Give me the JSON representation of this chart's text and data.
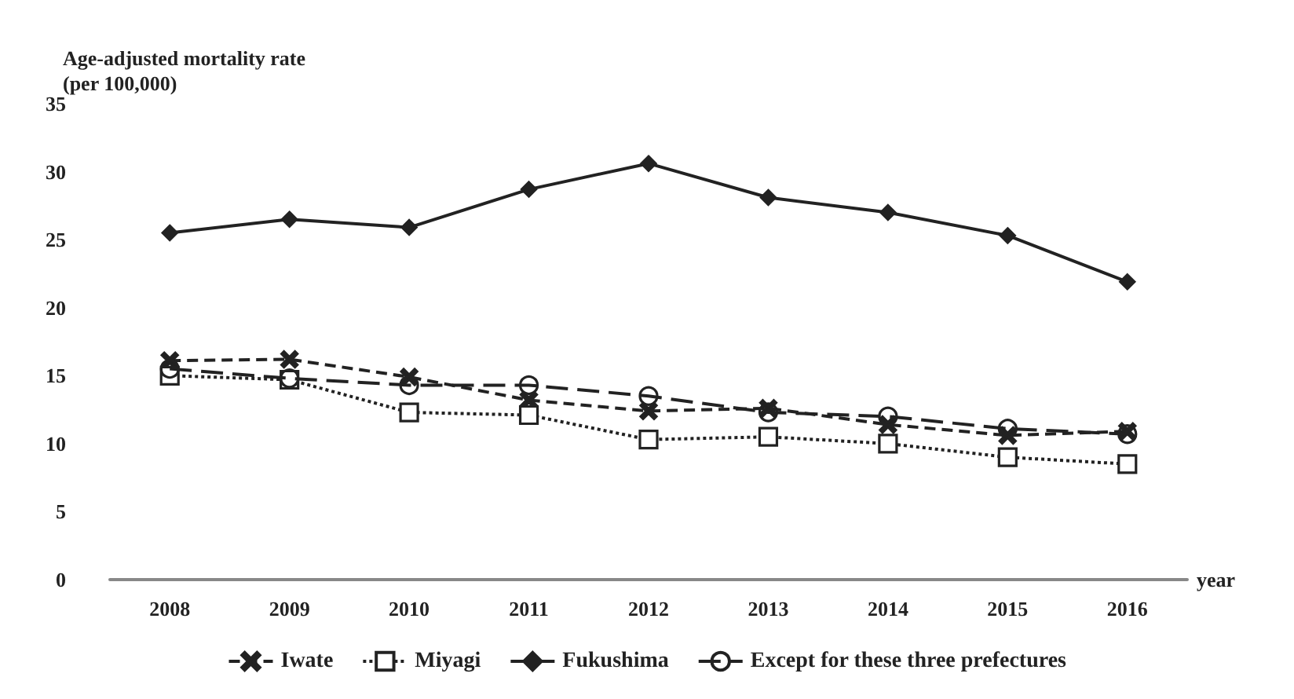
{
  "chart_data": {
    "type": "line",
    "ylabel": "Age-adjusted mortality rate\n(per 100,000)",
    "xlabel": "year",
    "categories": [
      "2008",
      "2009",
      "2010",
      "2011",
      "2012",
      "2013",
      "2014",
      "2015",
      "2016"
    ],
    "ylim": [
      0,
      35
    ],
    "yticks": [
      0,
      5,
      10,
      15,
      20,
      25,
      30,
      35
    ],
    "grid": false,
    "legend": "bottom",
    "series": [
      {
        "name": "Iwate",
        "color": "#222222",
        "marker": "cross",
        "line_style": "dashed",
        "values": [
          16.1,
          16.2,
          14.9,
          13.2,
          12.4,
          12.6,
          11.4,
          10.6,
          10.9
        ]
      },
      {
        "name": "Miyagi",
        "color": "#222222",
        "marker": "square",
        "line_style": "dotted",
        "values": [
          15.0,
          14.7,
          12.3,
          12.1,
          10.3,
          10.5,
          10.0,
          9.0,
          8.5
        ]
      },
      {
        "name": "Fukushima",
        "color": "#222222",
        "marker": "diamond",
        "line_style": "solid",
        "values": [
          25.5,
          26.5,
          25.9,
          28.7,
          30.6,
          28.1,
          27.0,
          25.3,
          21.9
        ]
      },
      {
        "name": "Except for these three prefectures",
        "color": "#222222",
        "marker": "circle",
        "line_style": "dashed",
        "values": [
          15.5,
          14.8,
          14.3,
          14.3,
          13.5,
          12.3,
          12.0,
          11.1,
          10.7
        ]
      }
    ]
  }
}
